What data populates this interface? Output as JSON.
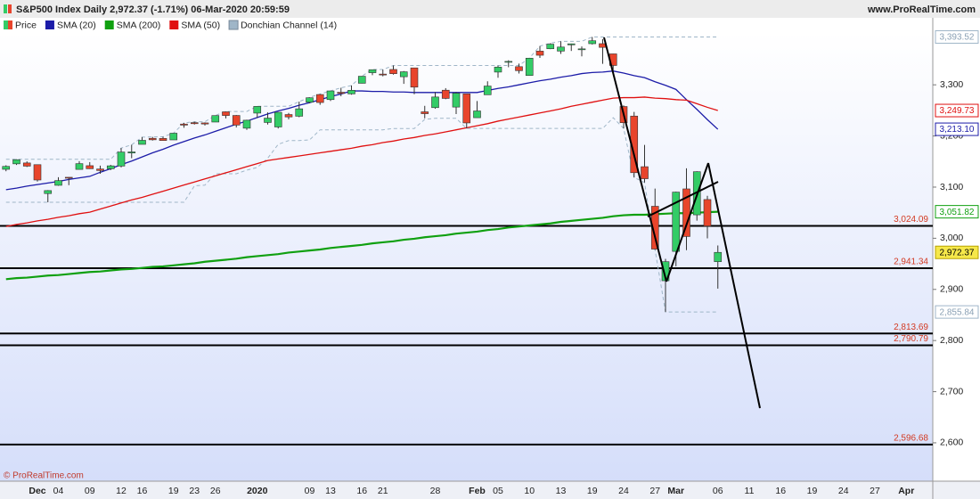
{
  "chart_data": {
    "type": "candlestick",
    "title": "S&P500 Index Daily 2,972.37 (-1.71%) 06-Mar-2020 20:59:59",
    "source": "www.ProRealTime.com",
    "copyright": "© ProRealTime.com",
    "categories": [
      null,
      null,
      null,
      "Dec",
      null,
      "04",
      null,
      null,
      "09",
      null,
      null,
      "12",
      null,
      "16",
      null,
      null,
      "19",
      null,
      "23",
      null,
      "26",
      null,
      null,
      null,
      "2020",
      null,
      null,
      null,
      null,
      "09",
      null,
      "13",
      null,
      null,
      "16",
      null,
      "21",
      null,
      null,
      null,
      null,
      "28",
      null,
      null,
      null,
      "Feb",
      null,
      "05",
      null,
      null,
      "10",
      null,
      null,
      "13",
      null,
      null,
      "19",
      null,
      null,
      "24",
      null,
      null,
      "27",
      null,
      "Mar",
      null,
      null,
      null,
      "06",
      null,
      null,
      "11",
      null,
      null,
      "16",
      null,
      null,
      "19",
      null,
      null,
      "24",
      null,
      null,
      "27",
      null,
      null,
      "Apr"
    ],
    "price": {
      "name": "Price",
      "up_color": "#33cc66",
      "down_color": "#e8452c",
      "open": [
        3134.8,
        3145.5,
        3147.2,
        3143.9,
        3087.4,
        3103.5,
        3119.2,
        3134.6,
        3141.9,
        3135.4,
        3135.8,
        3141.2,
        3166.7,
        3183.6,
        3195.4,
        3195.2,
        3192.3,
        3223.3,
        3226.1,
        3225.5,
        3227.2,
        3247.2,
        3240.1,
        3215.2,
        3244.7,
        3226.4,
        3217.6,
        3241.9,
        3238.6,
        3266.0,
        3281.0,
        3271.1,
        3285.4,
        3282.3,
        3303.0,
        3323.7,
        3321.0,
        3330.0,
        3315.8,
        3333.1,
        3247.2,
        3255.4,
        3289.5,
        3256.5,
        3282.3,
        3235.7,
        3280.6,
        3324.9,
        3344.9,
        3335.5,
        3318.3,
        3365.9,
        3370.5,
        3365.9,
        3378.1,
        3369.0,
        3380.4,
        3380.5,
        3360.5,
        3257.6,
        3238.9,
        3139.9,
        3062.5,
        2916.9,
        2974.3,
        3096.5,
        3045.8,
        3075.7,
        2954.2,
        null,
        null,
        null,
        null,
        null,
        null,
        null,
        null,
        null,
        null,
        null,
        null,
        null,
        null,
        null,
        null,
        null,
        null
      ],
      "high": [
        3142.7,
        3154.3,
        3150.3,
        3144.3,
        3094.1,
        3119.4,
        3119.4,
        3150.6,
        3148.9,
        3142.1,
        3143.5,
        3176.3,
        3182.7,
        3197.7,
        3198.2,
        3198.5,
        3205.5,
        3225.6,
        3227.8,
        3226.4,
        3240.1,
        3247.9,
        3240.9,
        3231.7,
        3258.1,
        3246.2,
        3246.8,
        3244.9,
        3267.1,
        3275.6,
        3282.0,
        3288.1,
        3294.2,
        3298.7,
        3317.1,
        3329.9,
        3329.8,
        3337.8,
        3326.9,
        3333.2,
        3258.9,
        3285.8,
        3293.5,
        3285.9,
        3282.3,
        3268.4,
        3306.9,
        3337.6,
        3348.0,
        3341.4,
        3352.3,
        3375.6,
        3381.5,
        3385.1,
        3380.7,
        3375.0,
        3393.52,
        3389.2,
        3360.8,
        3259.8,
        3247.0,
        3182.5,
        3097.1,
        2959.7,
        3091.0,
        3136.7,
        3131.0,
        3083.0,
        2985.9,
        null,
        null,
        null,
        null,
        null,
        null,
        null,
        null,
        null,
        null,
        null,
        null,
        null,
        null,
        null,
        null,
        null,
        null
      ],
      "low": [
        3131.0,
        3143.4,
        3139.3,
        3110.8,
        3070.3,
        3102.5,
        3103.8,
        3134.6,
        3135.5,
        3126.1,
        3133.2,
        3138.5,
        3156.5,
        3183.6,
        3191.0,
        3191.1,
        3192.3,
        3216.0,
        3222.3,
        3220.5,
        3227.2,
        3234.4,
        3216.6,
        3212.0,
        3235.5,
        3222.3,
        3214.6,
        3232.4,
        3236.7,
        3263.7,
        3260.9,
        3268.4,
        3277.6,
        3280.7,
        3302.8,
        3318.9,
        3316.6,
        3320.0,
        3301.9,
        3281.5,
        3234.5,
        3253.2,
        3271.9,
        3242.8,
        3214.7,
        3235.7,
        3280.6,
        3313.8,
        3334.4,
        3322.1,
        3317.8,
        3352.7,
        3369.7,
        3360.5,
        3366.2,
        3355.6,
        3378.8,
        3341.0,
        3328.5,
        3214.7,
        3118.8,
        3109.0,
        2977.4,
        2855.84,
        2945.2,
        2976.6,
        3034.4,
        2999.8,
        2901.5,
        null,
        null,
        null,
        null,
        null,
        null,
        null,
        null,
        null,
        null,
        null,
        null,
        null,
        null,
        null,
        null,
        null,
        null
      ],
      "close": [
        3140.5,
        3153.6,
        3141.0,
        3113.9,
        3093.2,
        3112.8,
        3117.4,
        3145.9,
        3136.0,
        3132.5,
        3141.6,
        3168.6,
        3168.8,
        3191.5,
        3192.5,
        3191.1,
        3205.4,
        3221.2,
        3224.0,
        3223.4,
        3239.9,
        3240.0,
        3221.3,
        3230.8,
        3257.9,
        3234.9,
        3246.3,
        3237.2,
        3253.1,
        3274.7,
        3265.4,
        3288.1,
        3283.2,
        3289.3,
        3316.8,
        3329.6,
        3320.8,
        3321.8,
        3325.5,
        3295.5,
        3243.6,
        3276.2,
        3273.4,
        3283.7,
        3225.5,
        3248.9,
        3297.6,
        3334.7,
        3345.8,
        3327.7,
        3352.1,
        3357.8,
        3379.5,
        3373.9,
        3380.2,
        3370.3,
        3386.2,
        3373.2,
        3337.8,
        3225.9,
        3128.2,
        3116.4,
        2978.8,
        2954.2,
        3090.2,
        3003.4,
        3130.1,
        3023.9,
        2972.37,
        null,
        null,
        null,
        null,
        null,
        null,
        null,
        null,
        null,
        null,
        null,
        null,
        null,
        null,
        null,
        null,
        null,
        null
      ],
      "last_label": "2,972.37"
    },
    "series": [
      {
        "name": "SMA (20)",
        "color": "#1c1ca8",
        "last_label": "3,213.10",
        "values": [
          3095,
          3098,
          3102,
          3105,
          3108,
          3111,
          3115,
          3118,
          3121,
          3129,
          3136,
          3144,
          3151,
          3159,
          3167,
          3174,
          3182,
          3189,
          3196,
          3202,
          3209,
          3216,
          3223,
          3229,
          3236,
          3243,
          3249,
          3254,
          3260,
          3265,
          3271,
          3277,
          3282,
          3288,
          3288,
          3287,
          3287,
          3286,
          3286,
          3285,
          3285,
          3285,
          3285,
          3285,
          3285,
          3285,
          3289,
          3293,
          3296,
          3300,
          3304,
          3308,
          3311,
          3315,
          3318,
          3322,
          3324,
          3325,
          3327,
          3323,
          3318,
          3314,
          3306,
          3299,
          3291,
          3271,
          3252,
          3232,
          3213.1,
          null,
          null,
          null,
          null,
          null,
          null,
          null,
          null,
          null,
          null,
          null,
          null,
          null,
          null,
          null,
          null,
          null,
          null
        ]
      },
      {
        "name": "SMA (200)",
        "color": "#10a010",
        "last_label": "3,051.82",
        "values": [
          2920,
          2922,
          2923,
          2925,
          2927,
          2928,
          2930,
          2932,
          2934,
          2935,
          2937,
          2939,
          2940,
          2942,
          2944,
          2945,
          2947,
          2949,
          2951,
          2954,
          2956,
          2958,
          2960,
          2963,
          2965,
          2967,
          2969,
          2972,
          2974,
          2976,
          2978,
          2981,
          2983,
          2985,
          2987,
          2990,
          2992,
          2994,
          2997,
          2999,
          3002,
          3004,
          3006,
          3009,
          3011,
          3013,
          3016,
          3018,
          3021,
          3023,
          3025,
          3027,
          3029,
          3032,
          3034,
          3036,
          3038,
          3040,
          3043,
          3045,
          3046,
          3046,
          3047,
          3048,
          3049,
          3049,
          3050,
          3051,
          3051.82,
          null,
          null,
          null,
          null,
          null,
          null,
          null,
          null,
          null,
          null,
          null,
          null,
          null,
          null,
          null,
          null,
          null,
          null
        ]
      },
      {
        "name": "SMA (50)",
        "color": "#e01010",
        "last_label": "3,249.73",
        "values": [
          3023,
          3027,
          3030,
          3034,
          3037,
          3041,
          3044,
          3048,
          3051,
          3057,
          3063,
          3069,
          3075,
          3080,
          3086,
          3092,
          3098,
          3104,
          3110,
          3116,
          3122,
          3128,
          3134,
          3140,
          3146,
          3152,
          3155,
          3158,
          3161,
          3164,
          3167,
          3170,
          3173,
          3176,
          3180,
          3183,
          3187,
          3190,
          3194,
          3197,
          3201,
          3204,
          3208,
          3212,
          3216,
          3220,
          3224,
          3229,
          3233,
          3237,
          3241,
          3245,
          3249,
          3253,
          3258,
          3262,
          3266,
          3270,
          3274,
          3275,
          3275,
          3276,
          3274,
          3273,
          3271,
          3270,
          3263,
          3256,
          3249.73,
          null,
          null,
          null,
          null,
          null,
          null,
          null,
          null,
          null,
          null,
          null,
          null,
          null,
          null,
          null,
          null,
          null,
          null
        ]
      }
    ],
    "donchian": {
      "name": "Donchian Channel (14)",
      "color": "#9fb6c8",
      "upper_label": "3,393.52",
      "lower_label": "2,855.84",
      "upper": [
        3154.3,
        3154.3,
        3154.3,
        3154.3,
        3154.3,
        3154.3,
        3154.3,
        3154.3,
        3154.3,
        3154.3,
        3154.3,
        3176.3,
        3182.7,
        3197.7,
        3198.2,
        3198.5,
        3205.5,
        3225.6,
        3227.8,
        3227.8,
        3240.1,
        3247.9,
        3247.9,
        3247.9,
        3258.1,
        3258.1,
        3258.1,
        3258.1,
        3267.1,
        3275.6,
        3282.0,
        3288.1,
        3294.2,
        3298.7,
        3317.1,
        3329.9,
        3329.9,
        3337.8,
        3337.8,
        3337.8,
        3337.8,
        3337.8,
        3337.8,
        3337.8,
        3337.8,
        3337.8,
        3337.8,
        3337.8,
        3337.8,
        3337.8,
        3352.3,
        3375.6,
        3381.5,
        3385.1,
        3385.1,
        3385.1,
        3393.52,
        3393.52,
        3393.52,
        3393.52,
        3393.52,
        3393.52,
        3393.52,
        3393.52,
        3393.52,
        3393.52,
        3393.52,
        3393.52,
        3393.52,
        null,
        null,
        null,
        null,
        null,
        null,
        null,
        null,
        null,
        null,
        null,
        null,
        null,
        null,
        null,
        null,
        null,
        null
      ],
      "lower": [
        3070.3,
        3070.3,
        3070.3,
        3070.3,
        3070.3,
        3070.3,
        3070.3,
        3070.3,
        3070.3,
        3070.3,
        3070.3,
        3070.3,
        3070.3,
        3070.3,
        3070.3,
        3070.3,
        3070.3,
        3070.3,
        3102.5,
        3103.8,
        3126.1,
        3126.1,
        3126.1,
        3133.2,
        3138.5,
        3156.5,
        3183.6,
        3191.0,
        3191.1,
        3192.3,
        3212.0,
        3212.0,
        3212.0,
        3212.0,
        3212.0,
        3212.0,
        3212.0,
        3214.6,
        3214.6,
        3214.6,
        3232.4,
        3234.5,
        3234.5,
        3234.5,
        3214.7,
        3214.7,
        3214.7,
        3214.7,
        3214.7,
        3214.7,
        3214.7,
        3214.7,
        3214.7,
        3214.7,
        3214.7,
        3214.7,
        3214.7,
        3214.7,
        3235.7,
        3214.7,
        3118.8,
        3109.0,
        2977.4,
        2855.84,
        2855.84,
        2855.84,
        2855.84,
        2855.84,
        2855.84,
        null,
        null,
        null,
        null,
        null,
        null,
        null,
        null,
        null,
        null,
        null,
        null,
        null,
        null,
        null,
        null,
        null,
        null
      ]
    },
    "levels": [
      {
        "value": 3024.09,
        "label": "3,024.09"
      },
      {
        "value": 2941.34,
        "label": "2,941.34"
      },
      {
        "value": 2813.69,
        "label": "2,813.69"
      },
      {
        "value": 2790.79,
        "label": "2,790.79"
      },
      {
        "value": 2596.68,
        "label": "2,596.68"
      }
    ],
    "ylim": [
      2525,
      3431
    ],
    "yticks": [
      {
        "value": 2600,
        "label": "2,600"
      },
      {
        "value": 2700,
        "label": "2,700"
      },
      {
        "value": 2800,
        "label": "2,800"
      },
      {
        "value": 2900,
        "label": "2,900"
      },
      {
        "value": 3000,
        "label": "3,000"
      },
      {
        "value": 3100,
        "label": "3,100"
      },
      {
        "value": 3200,
        "label": "3,200"
      },
      {
        "value": 3300,
        "label": "3,300"
      }
    ]
  }
}
